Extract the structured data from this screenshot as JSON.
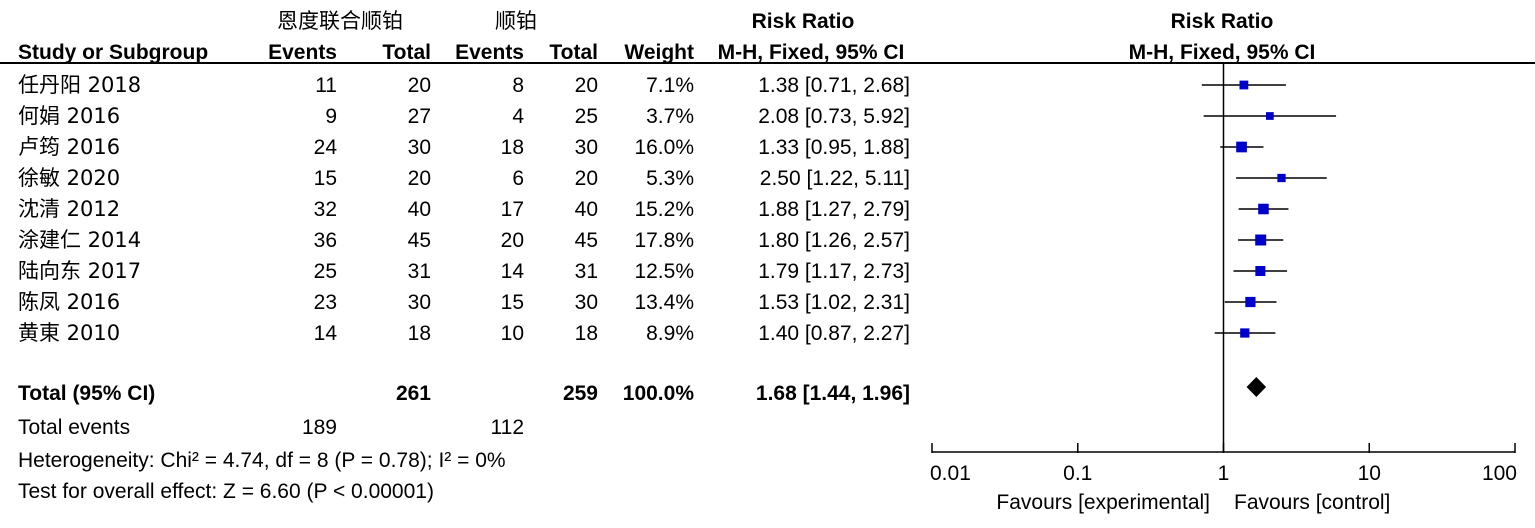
{
  "header": {
    "group_exp": "恩度联合顺铂",
    "group_ctl": "顺铂",
    "risk_ratio_col": "Risk Ratio",
    "risk_ratio_plot": "Risk Ratio",
    "col_study": "Study or Subgroup",
    "col_events_exp": "Events",
    "col_total_exp": "Total",
    "col_events_ctl": "Events",
    "col_total_ctl": "Total",
    "col_weight": "Weight",
    "col_method": "M-H, Fixed, 95% CI",
    "plot_method": "M-H, Fixed, 95% CI"
  },
  "studies": [
    {
      "name": "任丹阳 2018",
      "events_exp": "11",
      "total_exp": "20",
      "events_ctl": "8",
      "total_ctl": "20",
      "weight": "7.1%",
      "ci_text": "1.38 [0.71, 2.68]"
    },
    {
      "name": "何娟 2016",
      "events_exp": "9",
      "total_exp": "27",
      "events_ctl": "4",
      "total_ctl": "25",
      "weight": "3.7%",
      "ci_text": "2.08 [0.73, 5.92]"
    },
    {
      "name": "卢筠 2016",
      "events_exp": "24",
      "total_exp": "30",
      "events_ctl": "18",
      "total_ctl": "30",
      "weight": "16.0%",
      "ci_text": "1.33 [0.95, 1.88]"
    },
    {
      "name": "徐敏 2020",
      "events_exp": "15",
      "total_exp": "20",
      "events_ctl": "6",
      "total_ctl": "20",
      "weight": "5.3%",
      "ci_text": "2.50 [1.22, 5.11]"
    },
    {
      "name": "沈清 2012",
      "events_exp": "32",
      "total_exp": "40",
      "events_ctl": "17",
      "total_ctl": "40",
      "weight": "15.2%",
      "ci_text": "1.88 [1.27, 2.79]"
    },
    {
      "name": "涂建仁 2014",
      "events_exp": "36",
      "total_exp": "45",
      "events_ctl": "20",
      "total_ctl": "45",
      "weight": "17.8%",
      "ci_text": "1.80 [1.26, 2.57]"
    },
    {
      "name": "陆向东 2017",
      "events_exp": "25",
      "total_exp": "31",
      "events_ctl": "14",
      "total_ctl": "31",
      "weight": "12.5%",
      "ci_text": "1.79 [1.17, 2.73]"
    },
    {
      "name": "陈凤 2016",
      "events_exp": "23",
      "total_exp": "30",
      "events_ctl": "15",
      "total_ctl": "30",
      "weight": "13.4%",
      "ci_text": "1.53 [1.02, 2.31]"
    },
    {
      "name": "黄東 2010",
      "events_exp": "14",
      "total_exp": "18",
      "events_ctl": "10",
      "total_ctl": "18",
      "weight": "8.9%",
      "ci_text": "1.40 [0.87, 2.27]"
    }
  ],
  "total": {
    "label": "Total (95% CI)",
    "total_exp": "261",
    "total_ctl": "259",
    "weight": "100.0%",
    "ci_text": "1.68 [1.44, 1.96]"
  },
  "total_events": {
    "label": "Total events",
    "exp": "189",
    "ctl": "112"
  },
  "heterogeneity": "Heterogeneity: Chi² = 4.74, df = 8 (P = 0.78); I² = 0%",
  "overall_effect": "Test for overall effect: Z = 6.60 (P < 0.00001)",
  "axis": {
    "ticks": [
      "0.01",
      "0.1",
      "1",
      "10",
      "100"
    ],
    "favours_left": "Favours [experimental]",
    "favours_right": "Favours [control]"
  },
  "chart_data": {
    "type": "forest",
    "scale": "log",
    "xlim": [
      0.01,
      100
    ],
    "reference_line": 1,
    "marker_color": "#0000cc",
    "points": [
      {
        "study": "任丹阳 2018",
        "rr": 1.38,
        "lo": 0.71,
        "hi": 2.68,
        "weight": 7.1
      },
      {
        "study": "何娟 2016",
        "rr": 2.08,
        "lo": 0.73,
        "hi": 5.92,
        "weight": 3.7
      },
      {
        "study": "卢筠 2016",
        "rr": 1.33,
        "lo": 0.95,
        "hi": 1.88,
        "weight": 16.0
      },
      {
        "study": "徐敏 2020",
        "rr": 2.5,
        "lo": 1.22,
        "hi": 5.11,
        "weight": 5.3
      },
      {
        "study": "沈清 2012",
        "rr": 1.88,
        "lo": 1.27,
        "hi": 2.79,
        "weight": 15.2
      },
      {
        "study": "涂建仁 2014",
        "rr": 1.8,
        "lo": 1.26,
        "hi": 2.57,
        "weight": 17.8
      },
      {
        "study": "陆向东 2017",
        "rr": 1.79,
        "lo": 1.17,
        "hi": 2.73,
        "weight": 12.5
      },
      {
        "study": "陈凤 2016",
        "rr": 1.53,
        "lo": 1.02,
        "hi": 2.31,
        "weight": 13.4
      },
      {
        "study": "黄東 2010",
        "rr": 1.4,
        "lo": 0.87,
        "hi": 2.27,
        "weight": 8.9
      }
    ],
    "pooled": {
      "rr": 1.68,
      "lo": 1.44,
      "hi": 1.96
    }
  }
}
